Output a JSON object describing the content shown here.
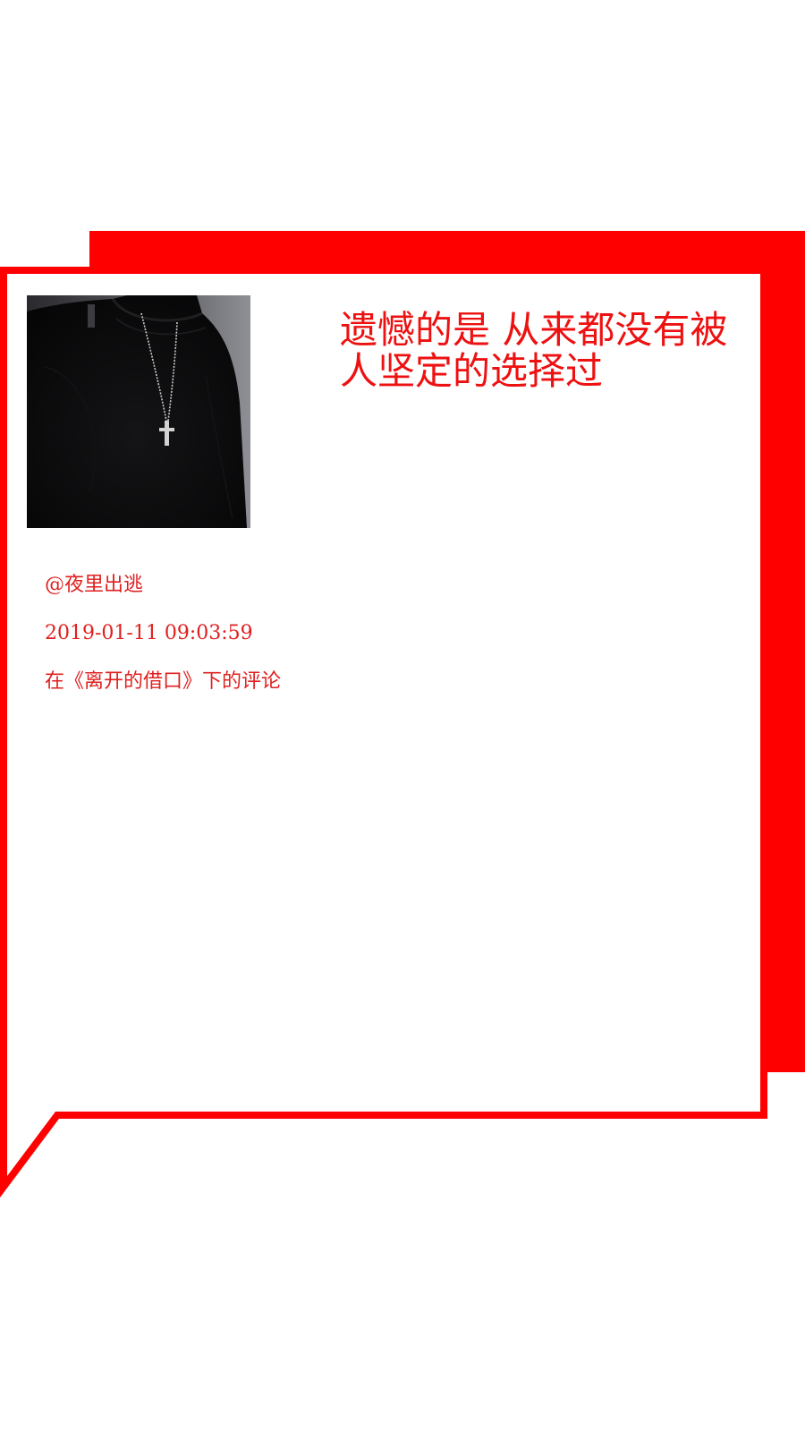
{
  "card": {
    "quote": "遗憾的是 从来都没有被人坚定的选择过",
    "author": "@夜里出逃",
    "timestamp": "2019-01-11 09:03:59",
    "source": "在《离开的借口》下的评论"
  },
  "photo": {
    "subject": "person in black turtleneck with cross necklace"
  },
  "colors": {
    "accent_red": "#ff0000",
    "text_red": "#e02020",
    "background": "#ffffff"
  }
}
